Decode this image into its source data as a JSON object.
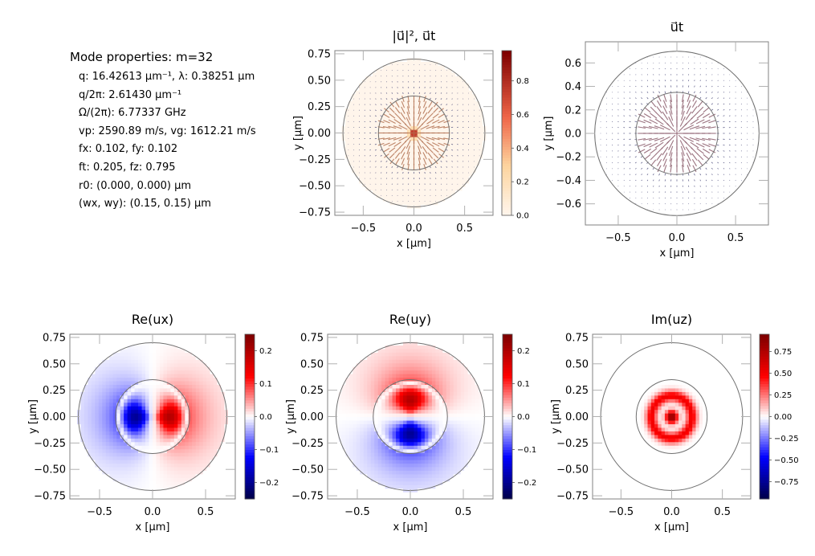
{
  "info": {
    "title": "Mode properties: m=32",
    "lines": [
      "q: 16.42613 μm⁻¹, λ: 0.38251 μm",
      "q/2π: 2.61430 μm⁻¹",
      "Ω/(2π): 6.77337 GHz",
      "vp: 2590.89 m/s, vg: 1612.21 m/s",
      "fx: 0.102, fy: 0.102",
      "ft: 0.205, fz: 0.795",
      "r0: (0.000, 0.000) μm",
      "(wx, wy): (0.15, 0.15) μm"
    ]
  },
  "colors": {
    "heat_low": "#fff5eb",
    "heat_high": "#7f0000",
    "seismic_low": "#00004c",
    "seismic_mid": "#ffffff",
    "seismic_high": "#800000",
    "circle": "#707070",
    "arrow": "#4a4a7a"
  },
  "chart_data": [
    {
      "id": "intensity",
      "type": "heatmap",
      "title": "|u⃗|², u⃗t",
      "xlabel": "x [μm]",
      "ylabel": "y [μm]",
      "xlim": [
        -0.78,
        0.78
      ],
      "ylim": [
        -0.78,
        0.78
      ],
      "x_ticks": [
        "−0.5",
        "0.0",
        "0.5"
      ],
      "y_ticks": [
        "0.75",
        "0.50",
        "0.25",
        "0.00",
        "−0.25",
        "−0.50",
        "−0.75"
      ],
      "colorbar": {
        "cmap": "OrRd",
        "range": [
          0,
          0.98
        ],
        "ticks": [
          "0.8",
          "0.6",
          "0.4",
          "0.2",
          "0.0"
        ]
      },
      "geometry": {
        "outer_radius": 0.7,
        "inner_radius": 0.35
      },
      "quiver": true
    },
    {
      "id": "transverse",
      "type": "quiver",
      "title": "u⃗t",
      "xlabel": "x [μm]",
      "ylabel": "y [μm]",
      "xlim": [
        -0.78,
        0.78
      ],
      "ylim": [
        -0.78,
        0.78
      ],
      "x_ticks": [
        "−0.5",
        "0.0",
        "0.5"
      ],
      "y_ticks": [
        "0.6",
        "0.4",
        "0.2",
        "0.0",
        "−0.2",
        "−0.4",
        "−0.6"
      ],
      "geometry": {
        "outer_radius": 0.7,
        "inner_radius": 0.35
      }
    },
    {
      "id": "re_ux",
      "type": "heatmap",
      "title": "Re(ux)",
      "xlabel": "x [μm]",
      "ylabel": "y [μm]",
      "xlim": [
        -0.78,
        0.78
      ],
      "ylim": [
        -0.78,
        0.78
      ],
      "x_ticks": [
        "−0.5",
        "0.0",
        "0.5"
      ],
      "y_ticks": [
        "0.75",
        "0.50",
        "0.25",
        "0.00",
        "−0.25",
        "−0.50",
        "−0.75"
      ],
      "colorbar": {
        "cmap": "seismic",
        "range": [
          -0.25,
          0.25
        ],
        "ticks": [
          "0.2",
          "0.1",
          "0.0",
          "−0.1",
          "−0.2"
        ]
      },
      "geometry": {
        "outer_radius": 0.7,
        "inner_radius": 0.35
      }
    },
    {
      "id": "re_uy",
      "type": "heatmap",
      "title": "Re(uy)",
      "xlabel": "x [μm]",
      "ylabel": "y [μm]",
      "xlim": [
        -0.78,
        0.78
      ],
      "ylim": [
        -0.78,
        0.78
      ],
      "x_ticks": [
        "−0.5",
        "0.0",
        "0.5"
      ],
      "y_ticks": [
        "0.75",
        "0.50",
        "0.25",
        "0.00",
        "−0.25",
        "−0.50",
        "−0.75"
      ],
      "colorbar": {
        "cmap": "seismic",
        "range": [
          -0.25,
          0.25
        ],
        "ticks": [
          "0.2",
          "0.1",
          "0.0",
          "−0.1",
          "−0.2"
        ]
      },
      "geometry": {
        "outer_radius": 0.7,
        "inner_radius": 0.35
      }
    },
    {
      "id": "im_uz",
      "type": "heatmap",
      "title": "Im(uz)",
      "xlabel": "x [μm]",
      "ylabel": "y [μm]",
      "xlim": [
        -0.78,
        0.78
      ],
      "ylim": [
        -0.78,
        0.78
      ],
      "x_ticks": [
        "−0.5",
        "0.0",
        "0.5"
      ],
      "y_ticks": [
        "0.75",
        "0.50",
        "0.25",
        "0.00",
        "−0.25",
        "−0.50",
        "−0.75"
      ],
      "colorbar": {
        "cmap": "seismic",
        "range": [
          -0.95,
          0.95
        ],
        "ticks": [
          "0.75",
          "0.50",
          "0.25",
          "0.00",
          "−0.25",
          "−0.50",
          "−0.75"
        ]
      },
      "geometry": {
        "outer_radius": 0.7,
        "inner_radius": 0.35
      }
    }
  ]
}
